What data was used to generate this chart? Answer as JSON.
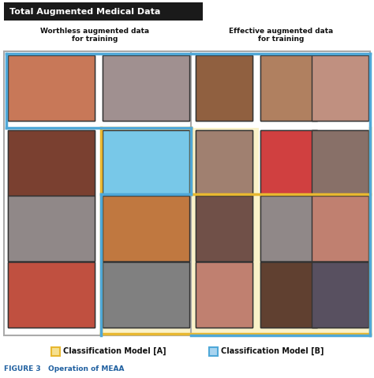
{
  "title": "Total Augmented Medical Data",
  "title_bg": "#1a1a1a",
  "title_color": "#ffffff",
  "left_label": "Worthless augmented data\nfor training",
  "right_label": "Effective augmented data\nfor training",
  "legend_A_label": "Classification Model [A]",
  "legend_B_label": "Classification Model [B]",
  "legend_A_color": "#e8b830",
  "legend_B_color": "#4fa8d8",
  "legend_A_fill": "#f5e090",
  "legend_B_fill": "#a8d4f0",
  "caption_label": "FIGURE 3   Operation of MEAA",
  "caption_color": "#2060a0",
  "outer_border_color": "#aaaaaa",
  "blue_box_color": "#4fa8d8",
  "yellow_box_color": "#e8b830",
  "yellow_fill": "#faf0c0",
  "bg_color": "#ffffff",
  "image_colors_left": [
    [
      "#c87858",
      "#a09090"
    ],
    [
      "#7a4030",
      "#78c8e8"
    ],
    [
      "#908888",
      "#c07840"
    ],
    [
      "#c05040",
      "#808080"
    ]
  ],
  "image_colors_right": [
    [
      "#906040",
      "#b08060",
      "#c09080"
    ],
    [
      "#a08070",
      "#d04040",
      "#887068"
    ],
    [
      "#705048",
      "#908888",
      "#c08070"
    ],
    [
      "#c08070",
      "#604030",
      "#585060"
    ]
  ],
  "figw": 4.74,
  "figh": 4.79,
  "dpi": 100
}
